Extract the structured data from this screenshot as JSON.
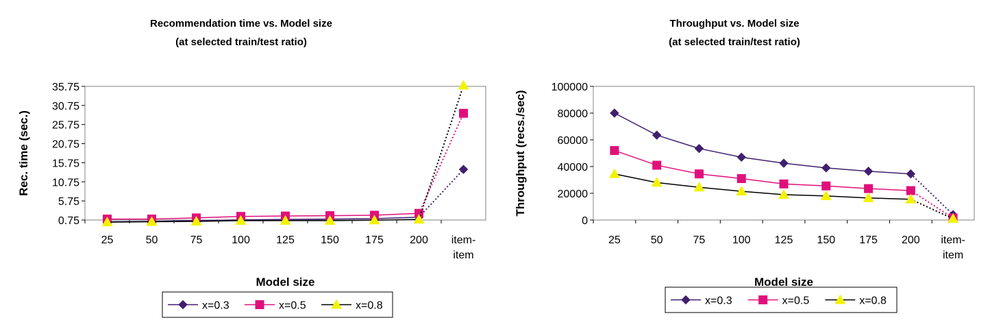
{
  "chart_data": [
    {
      "type": "line",
      "title": "Recommendation time vs. Model size",
      "subtitle": "(at selected train/test ratio)",
      "xlabel": "Model size",
      "ylabel": "Rec. time (sec.)",
      "categories": [
        "25",
        "50",
        "75",
        "100",
        "125",
        "150",
        "175",
        "200",
        "item-item"
      ],
      "yticks": [
        "0.75",
        "5.75",
        "10.75",
        "15.75",
        "20.75",
        "25.75",
        "30.75",
        "35.75"
      ],
      "ylim": [
        0.75,
        35.75
      ],
      "legend_position": "bottom",
      "grid": false,
      "series": [
        {
          "name": "x=0.3",
          "color": "#3f1f6e",
          "marker": "diamond",
          "values": [
            0.3,
            0.4,
            0.6,
            0.8,
            0.9,
            1.0,
            1.1,
            1.5,
            14.0
          ]
        },
        {
          "name": "x=0.5",
          "color": "#e0107b",
          "marker": "square",
          "values": [
            1.0,
            1.0,
            1.3,
            1.7,
            1.8,
            1.9,
            2.0,
            2.5,
            28.7
          ]
        },
        {
          "name": "x=0.8",
          "color": "#f2f200",
          "marker": "triangle",
          "values": [
            0.2,
            0.3,
            0.4,
            0.6,
            0.6,
            0.6,
            0.7,
            0.9,
            36.0
          ]
        }
      ]
    },
    {
      "type": "line",
      "title": "Throughput vs. Model size",
      "subtitle": "(at selected train/test ratio)",
      "xlabel": "Model size",
      "ylabel": "Throughput (recs./sec)",
      "categories": [
        "25",
        "50",
        "75",
        "100",
        "125",
        "150",
        "175",
        "200",
        "item-item"
      ],
      "yticks": [
        "0",
        "20000",
        "40000",
        "60000",
        "80000",
        "100000"
      ],
      "ylim": [
        0,
        100000
      ],
      "legend_position": "bottom",
      "grid": false,
      "series": [
        {
          "name": "x=0.3",
          "color": "#3f1f6e",
          "marker": "diamond",
          "values": [
            80000,
            63500,
            53500,
            47000,
            42500,
            39000,
            36500,
            34500,
            4000
          ]
        },
        {
          "name": "x=0.5",
          "color": "#e0107b",
          "marker": "square",
          "values": [
            52000,
            41000,
            34500,
            31000,
            27000,
            25500,
            23500,
            22000,
            1500
          ]
        },
        {
          "name": "x=0.8",
          "color": "#f2f200",
          "marker": "triangle",
          "values": [
            34500,
            28000,
            24500,
            21500,
            19000,
            18000,
            16500,
            15500,
            1000
          ]
        }
      ]
    }
  ]
}
